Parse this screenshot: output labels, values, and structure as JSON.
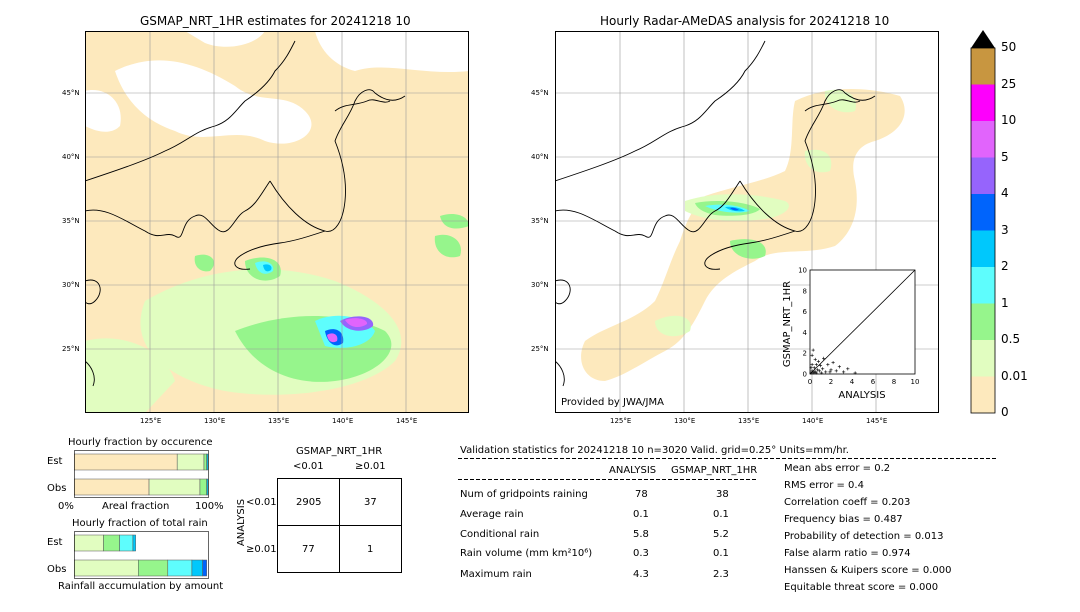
{
  "left_map": {
    "title": "GSMAP_NRT_1HR estimates for 20241218 10",
    "lat_labels": [
      "45°N",
      "40°N",
      "35°N",
      "30°N",
      "25°N"
    ],
    "lon_labels": [
      "125°E",
      "130°E",
      "135°E",
      "140°E",
      "145°E"
    ]
  },
  "right_map": {
    "title": "Hourly Radar-AMeDAS analysis for 20241218 10",
    "lat_labels": [
      "45°N",
      "40°N",
      "35°N",
      "30°N",
      "25°N"
    ],
    "lon_labels": [
      "125°E",
      "130°E",
      "135°E",
      "140°E",
      "145°E"
    ],
    "credit": "Provided by JWA/JMA"
  },
  "colorbar": {
    "levels": [
      "0",
      "0.01",
      "0.5",
      "1",
      "2",
      "3",
      "4",
      "5",
      "10",
      "25",
      "50"
    ],
    "colors": [
      "#fde9bd",
      "#e1fdc0",
      "#96f58c",
      "#5efdfd",
      "#00c8fc",
      "#0064fc",
      "#9664fc",
      "#e164fc",
      "#fd00fc",
      "#c89640"
    ]
  },
  "chart_data": [
    {
      "type": "scatter",
      "title": "",
      "xlabel": "ANALYSIS",
      "ylabel": "GSMAP_NRT_1HR",
      "xlim": [
        0,
        10
      ],
      "ylim": [
        0,
        10
      ],
      "x_ticks": [
        "0",
        "2",
        "4",
        "6",
        "8",
        "10"
      ],
      "y_ticks": [
        "0",
        "2",
        "4",
        "6",
        "8",
        "10"
      ],
      "points": [
        [
          0.1,
          0.1
        ],
        [
          0.2,
          0.3
        ],
        [
          0.3,
          0.1
        ],
        [
          0.4,
          0.6
        ],
        [
          0.5,
          0.2
        ],
        [
          0.6,
          0.9
        ],
        [
          0.7,
          0.4
        ],
        [
          0.8,
          1.2
        ],
        [
          0.9,
          0.3
        ],
        [
          1.0,
          0.8
        ],
        [
          1.2,
          0.5
        ],
        [
          1.3,
          1.5
        ],
        [
          1.5,
          0.2
        ],
        [
          1.7,
          0.9
        ],
        [
          2.0,
          0.4
        ],
        [
          2.2,
          1.1
        ],
        [
          2.5,
          0.3
        ],
        [
          2.8,
          0.7
        ],
        [
          3.2,
          0.2
        ],
        [
          3.6,
          0.5
        ],
        [
          4.3,
          0.1
        ],
        [
          0.2,
          1.8
        ],
        [
          0.3,
          2.3
        ],
        [
          0.5,
          1.4
        ],
        [
          0.1,
          0.6
        ],
        [
          0.4,
          0.2
        ],
        [
          1.1,
          0.1
        ],
        [
          1.9,
          0.2
        ],
        [
          0.6,
          0.1
        ],
        [
          0.2,
          0.9
        ]
      ]
    },
    {
      "type": "bar",
      "title": "Hourly fraction by occurence",
      "categories": [
        "Est",
        "Obs"
      ],
      "x_left_label": "0%",
      "x_center_label": "Areal fraction",
      "x_right_label": "100%",
      "series": [
        {
          "values": [
            0.77,
            0.56
          ]
        },
        {
          "values": [
            0.2,
            0.38
          ]
        },
        {
          "values": [
            0.02,
            0.05
          ]
        },
        {
          "values": [
            0.01,
            0.01
          ]
        }
      ]
    },
    {
      "type": "bar",
      "title": "Hourly fraction of total rain",
      "categories": [
        "Est",
        "Obs"
      ],
      "x_center_label": "Rainfall accumulation by amount",
      "series": [
        {
          "values": [
            0.22,
            0.48
          ]
        },
        {
          "values": [
            0.12,
            0.22
          ]
        },
        {
          "values": [
            0.1,
            0.18
          ]
        },
        {
          "values": [
            0.02,
            0.08
          ]
        },
        {
          "values": [
            0.0,
            0.03
          ]
        }
      ]
    }
  ],
  "contingency": {
    "title": "GSMAP_NRT_1HR",
    "col_labels": [
      "<0.01",
      "≥0.01"
    ],
    "row_axis_label": "ANALYSIS",
    "row_labels": [
      "<0.01",
      "≥0.01"
    ],
    "cells": [
      [
        "2905",
        "37"
      ],
      [
        "77",
        "1"
      ]
    ]
  },
  "validation": {
    "header": "Validation statistics for 20241218 10  n=3020 Valid. grid=0.25° Units=mm/hr.",
    "col_analysis": "ANALYSIS",
    "col_gsmap": "GSMAP_NRT_1HR",
    "rows": [
      {
        "label": "Num of gridpoints raining",
        "a": "78",
        "g": "38"
      },
      {
        "label": "Average rain",
        "a": "0.1",
        "g": "0.1"
      },
      {
        "label": "Conditional rain",
        "a": "5.8",
        "g": "5.2"
      },
      {
        "label": "Rain volume (mm km²10⁶)",
        "a": "0.3",
        "g": "0.1"
      },
      {
        "label": "Maximum rain",
        "a": "4.3",
        "g": "2.3"
      }
    ],
    "scores": [
      "Mean abs error =    0.2",
      "RMS error =    0.4",
      "Correlation coeff =  0.203",
      "Frequency bias =  0.487",
      "Probability of detection =  0.013",
      "False alarm ratio =  0.974",
      "Hanssen & Kuipers score =  0.000",
      "Equitable threat score =  0.000"
    ]
  }
}
